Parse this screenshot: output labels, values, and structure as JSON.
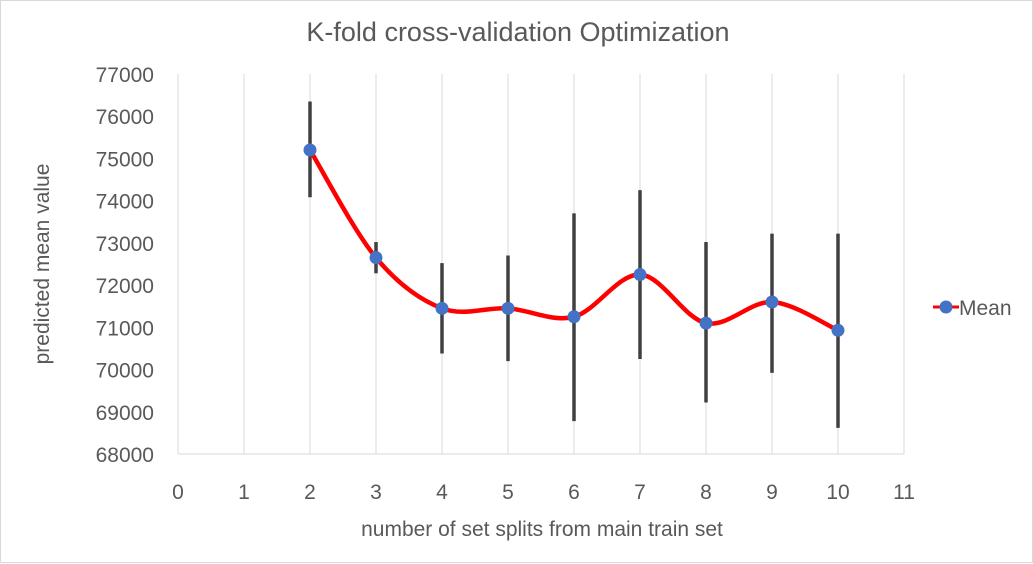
{
  "chart_data": {
    "type": "scatter",
    "title": "K-fold cross-validation Optimization",
    "xlabel": "number of set splits from main train set",
    "ylabel": "predicted mean value",
    "xlim": [
      0,
      11
    ],
    "ylim": [
      68000,
      77000
    ],
    "x_ticks": [
      0,
      1,
      2,
      3,
      4,
      5,
      6,
      7,
      8,
      9,
      10,
      11
    ],
    "y_ticks": [
      68000,
      69000,
      70000,
      71000,
      72000,
      73000,
      74000,
      75000,
      76000,
      77000
    ],
    "grid": {
      "x": true,
      "y": false
    },
    "smooth_line": true,
    "legend_position": "right",
    "series": [
      {
        "name": "Mean",
        "line_color": "#ff0000",
        "marker_color": "#4472c4",
        "x": [
          2,
          3,
          4,
          5,
          6,
          7,
          8,
          9,
          10
        ],
        "y": [
          75200,
          72650,
          71450,
          71450,
          71250,
          72250,
          71100,
          71600,
          70930
        ],
        "error_low": [
          74080,
          72280,
          70380,
          70200,
          68780,
          70250,
          69220,
          69920,
          68620
        ],
        "error_high": [
          76350,
          73020,
          72520,
          72700,
          73700,
          74250,
          73020,
          73220,
          73220
        ]
      }
    ]
  }
}
